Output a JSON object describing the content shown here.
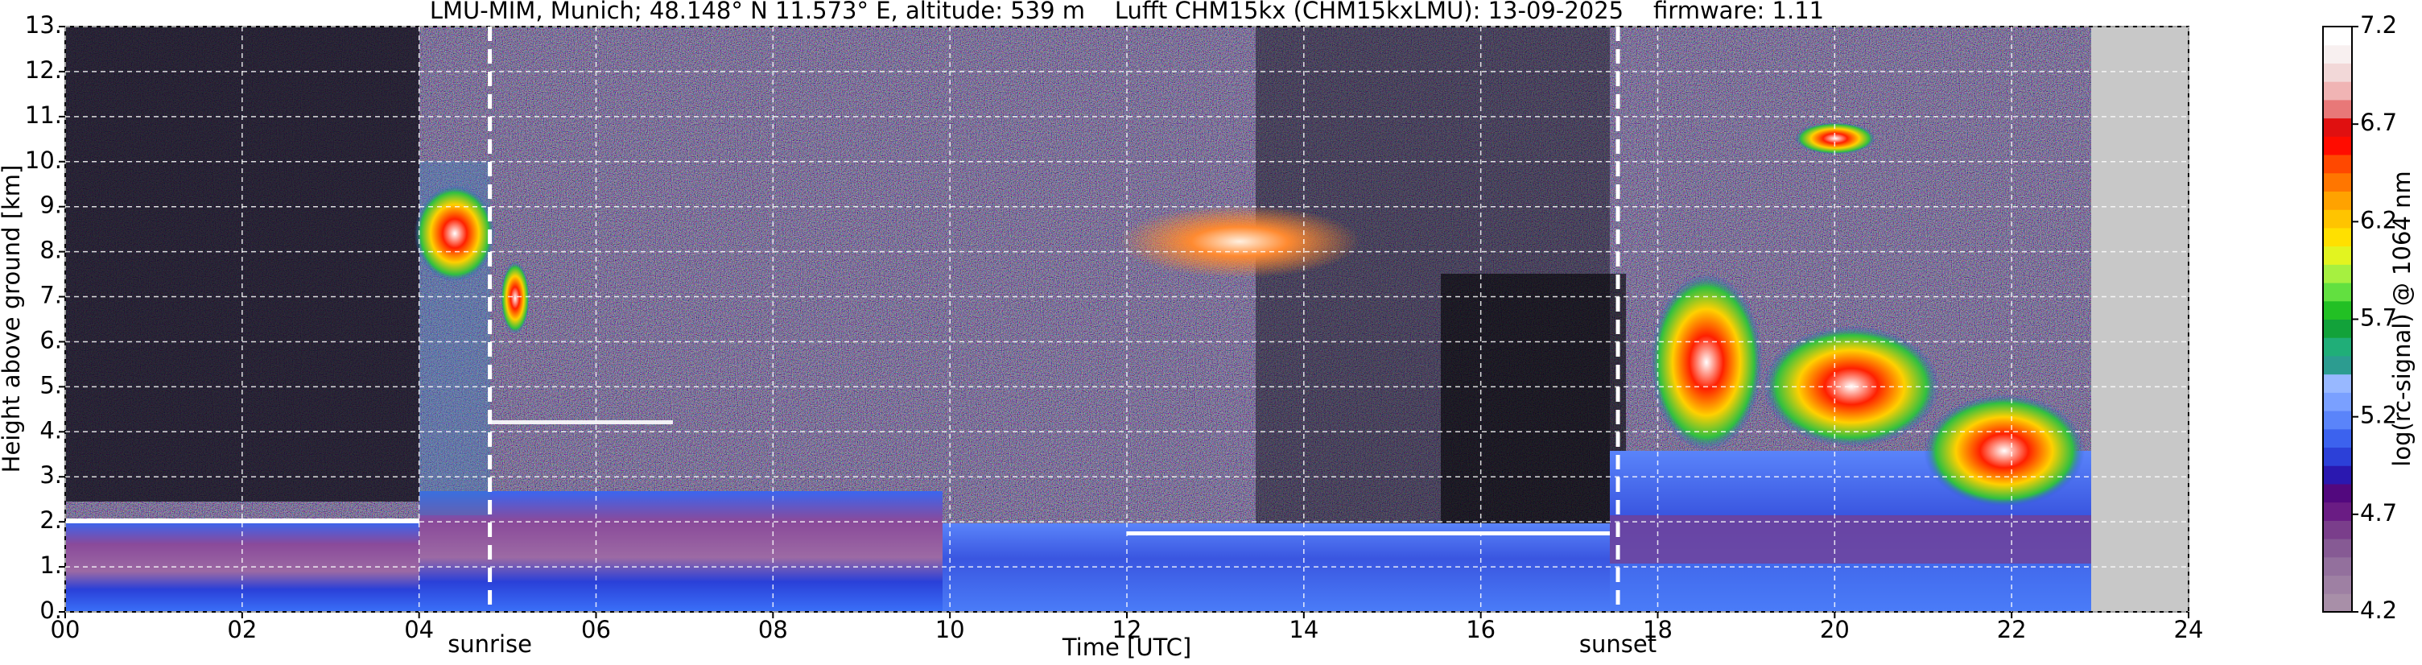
{
  "chart_data": {
    "type": "heatmap",
    "title": "LMU-MIM, Munich; 48.148° N 11.573° E, altitude: 539 m    Lufft CHM15kx (CHM15kxLMU): 13-09-2025    firmware: 1.11",
    "xlabel": "Time [UTC]",
    "ylabel": "Height above ground [km]",
    "xlim": [
      0,
      24
    ],
    "xticks": [
      {
        "value": 0,
        "label": "00"
      },
      {
        "value": 2,
        "label": "02"
      },
      {
        "value": 4,
        "label": "04"
      },
      {
        "value": 6,
        "label": "06"
      },
      {
        "value": 8,
        "label": "08"
      },
      {
        "value": 10,
        "label": "10"
      },
      {
        "value": 12,
        "label": "12"
      },
      {
        "value": 14,
        "label": "14"
      },
      {
        "value": 16,
        "label": "16"
      },
      {
        "value": 18,
        "label": "18"
      },
      {
        "value": 20,
        "label": "20"
      },
      {
        "value": 22,
        "label": "22"
      },
      {
        "value": 24,
        "label": "24"
      }
    ],
    "ylim": [
      0,
      13
    ],
    "yticks": [
      {
        "value": 0,
        "label": "0."
      },
      {
        "value": 1,
        "label": "1."
      },
      {
        "value": 2,
        "label": "2."
      },
      {
        "value": 3,
        "label": "3."
      },
      {
        "value": 4,
        "label": "4."
      },
      {
        "value": 5,
        "label": "5."
      },
      {
        "value": 6,
        "label": "6."
      },
      {
        "value": 7,
        "label": "7."
      },
      {
        "value": 8,
        "label": "8."
      },
      {
        "value": 9,
        "label": "9."
      },
      {
        "value": 10,
        "label": "10."
      },
      {
        "value": 11,
        "label": "11."
      },
      {
        "value": 12,
        "label": "12."
      },
      {
        "value": 13,
        "label": "13."
      }
    ],
    "grid": true,
    "annotations": [
      {
        "text": "sunrise",
        "x": 4.8
      },
      {
        "text": "sunset",
        "x": 17.55
      }
    ],
    "colorbar": {
      "label": "log(rc-signal) @ 1064 nm",
      "lim": [
        4.2,
        7.2
      ],
      "ticks": [
        4.2,
        4.7,
        5.2,
        5.7,
        6.2,
        6.7,
        7.2
      ],
      "colors": [
        "#a88fa8",
        "#9e80a3",
        "#93709d",
        "#865a94",
        "#7a3e8b",
        "#6a1c84",
        "#52087e",
        "#2a18b0",
        "#2c40d8",
        "#3c62ee",
        "#5a84fa",
        "#7aa0ff",
        "#98b8ff",
        "#2c9c90",
        "#20ae78",
        "#12a23a",
        "#22c024",
        "#62e040",
        "#a6f040",
        "#e2f420",
        "#ffe000",
        "#ffc400",
        "#ffa200",
        "#ff7600",
        "#ff4800",
        "#ff0c00",
        "#e01010",
        "#e87878",
        "#f0b4b4",
        "#f2d8d8",
        "#f8f0f0",
        "#ffffff"
      ]
    }
  }
}
